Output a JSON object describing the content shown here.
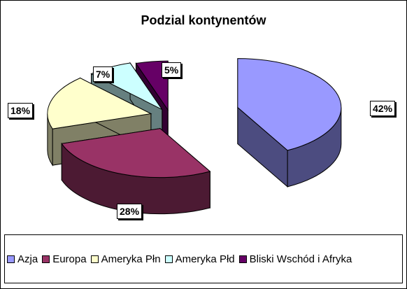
{
  "chart_data": {
    "type": "pie",
    "title": "Podzial kontynentów",
    "categories": [
      "Azja",
      "Europa",
      "Ameryka Płn",
      "Ameryka Płd",
      "Bliski Wschód i Afryka"
    ],
    "values": [
      42,
      28,
      18,
      7,
      5
    ],
    "value_labels": [
      "42%",
      "28%",
      "18%",
      "7%",
      "5%"
    ],
    "colors": [
      "#9999FF",
      "#993366",
      "#FFFFCC",
      "#CCFFFF",
      "#660066"
    ],
    "side_colors": [
      "#4C4C80",
      "#4C1A33",
      "#808066",
      "#668080",
      "#330033"
    ],
    "style": "3d-exploded",
    "legend_position": "bottom"
  }
}
